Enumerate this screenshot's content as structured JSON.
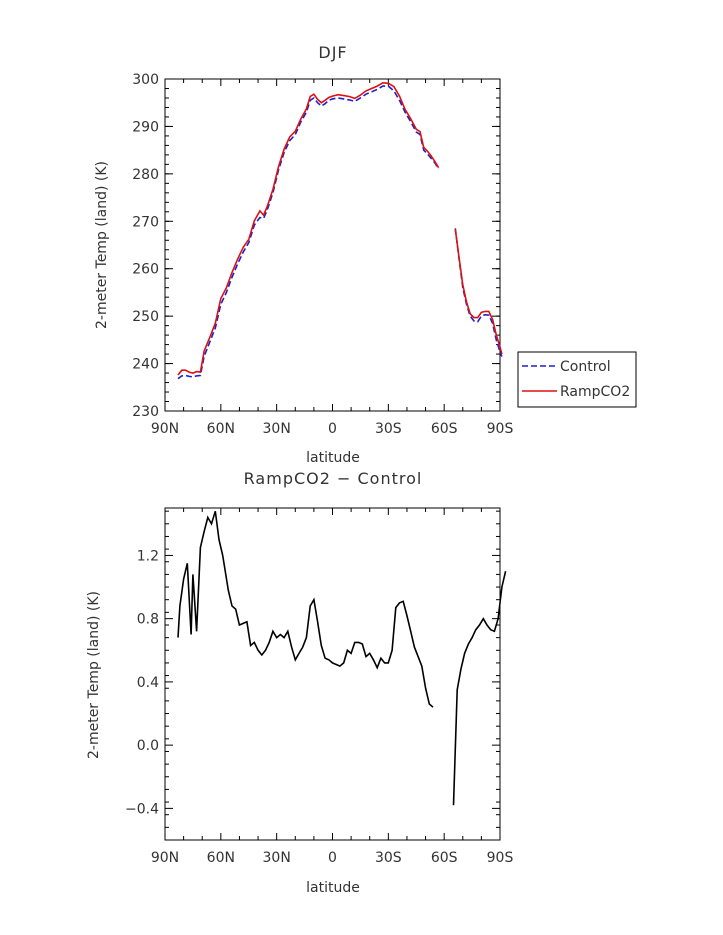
{
  "chart_data": [
    {
      "type": "line",
      "title": "DJF",
      "xlabel": "latitude",
      "ylabel": "2-meter Temp (land) (K)",
      "x_tick_labels": [
        "90N",
        "60N",
        "30N",
        "0",
        "30S",
        "60S",
        "90S"
      ],
      "x_tick_values": [
        90,
        60,
        30,
        0,
        -30,
        -60,
        -90
      ],
      "y_ticks": [
        230,
        240,
        250,
        260,
        270,
        280,
        290,
        300
      ],
      "xlim": [
        90,
        -90
      ],
      "ylim": [
        230,
        300
      ],
      "legend_position": "right",
      "series": [
        {
          "name": "Control",
          "color": "#1f1fcc",
          "style": "dashed",
          "segments": [
            [
              [
                83,
                236.8
              ],
              [
                81,
                237.4
              ],
              [
                79,
                237.5
              ],
              [
                77,
                237.3
              ],
              [
                75,
                237.2
              ],
              [
                73,
                237.4
              ],
              [
                71,
                237.5
              ],
              [
                69,
                241.5
              ],
              [
                66,
                244.5
              ],
              [
                63,
                247.5
              ],
              [
                60,
                252.5
              ],
              [
                57,
                255
              ],
              [
                54,
                258.2
              ],
              [
                51,
                261
              ],
              [
                48,
                263.5
              ],
              [
                45,
                265.5
              ],
              [
                42,
                269.2
              ],
              [
                39,
                270.8
              ],
              [
                37,
                270.6
              ],
              [
                35,
                272.5
              ],
              [
                32,
                276
              ],
              [
                29,
                280.8
              ],
              [
                26,
                284.5
              ],
              [
                23,
                287
              ],
              [
                20,
                288.3
              ],
              [
                17,
                291
              ],
              [
                14,
                293
              ],
              [
                12,
                295.5
              ],
              [
                10,
                296
              ],
              [
                8,
                295
              ],
              [
                6,
                294.3
              ],
              [
                4,
                294.8
              ],
              [
                2,
                295.5
              ],
              [
                0,
                295.8
              ],
              [
                -3,
                296
              ],
              [
                -6,
                295.8
              ],
              [
                -9,
                295.6
              ],
              [
                -12,
                295.3
              ],
              [
                -15,
                296
              ],
              [
                -18,
                296.8
              ],
              [
                -21,
                297.3
              ],
              [
                -24,
                297.8
              ],
              [
                -27,
                298.5
              ],
              [
                -30,
                298.5
              ],
              [
                -33,
                297.5
              ],
              [
                -36,
                295.5
              ],
              [
                -39,
                293
              ],
              [
                -42,
                291
              ],
              [
                -45,
                288.8
              ],
              [
                -47,
                288.3
              ],
              [
                -49,
                285
              ],
              [
                -51,
                284.2
              ],
              [
                -53,
                283.3
              ],
              [
                -55,
                282.3
              ],
              [
                -57,
                281
              ]
            ],
            [
              [
                -66,
                268.5
              ],
              [
                -68,
                262
              ],
              [
                -70,
                256
              ],
              [
                -72,
                252.5
              ],
              [
                -74,
                250
              ],
              [
                -76,
                249
              ],
              [
                -78,
                248.8
              ],
              [
                -80,
                250
              ],
              [
                -82,
                250.3
              ],
              [
                -84,
                250.2
              ],
              [
                -86,
                248.5
              ],
              [
                -88,
                245
              ],
              [
                -90,
                242.5
              ],
              [
                -91,
                241.5
              ]
            ]
          ]
        },
        {
          "name": "RampCO2",
          "color": "#dd1111",
          "style": "solid",
          "segments": [
            [
              [
                83,
                237.6
              ],
              [
                81,
                238.6
              ],
              [
                79,
                238.6
              ],
              [
                77,
                238.2
              ],
              [
                75,
                238
              ],
              [
                73,
                238.3
              ],
              [
                71,
                238.2
              ],
              [
                69,
                242.6
              ],
              [
                66,
                245.5
              ],
              [
                63,
                248.5
              ],
              [
                60,
                253.7
              ],
              [
                57,
                256
              ],
              [
                54,
                259.2
              ],
              [
                51,
                262
              ],
              [
                48,
                264.5
              ],
              [
                45,
                266.2
              ],
              [
                42,
                270.1
              ],
              [
                39,
                272.2
              ],
              [
                37,
                271.3
              ],
              [
                35,
                273.2
              ],
              [
                32,
                276.7
              ],
              [
                29,
                281.5
              ],
              [
                26,
                285.2
              ],
              [
                23,
                287.8
              ],
              [
                20,
                289
              ],
              [
                17,
                291.6
              ],
              [
                14,
                293.7
              ],
              [
                12,
                296.3
              ],
              [
                10,
                296.8
              ],
              [
                8,
                295.7
              ],
              [
                6,
                295
              ],
              [
                4,
                295.5
              ],
              [
                2,
                296.1
              ],
              [
                0,
                296.4
              ],
              [
                -3,
                296.7
              ],
              [
                -6,
                296.5
              ],
              [
                -9,
                296.3
              ],
              [
                -12,
                295.9
              ],
              [
                -15,
                296.6
              ],
              [
                -18,
                297.5
              ],
              [
                -21,
                298
              ],
              [
                -24,
                298.5
              ],
              [
                -27,
                299.2
              ],
              [
                -30,
                299.1
              ],
              [
                -33,
                298.4
              ],
              [
                -36,
                296.4
              ],
              [
                -39,
                293.6
              ],
              [
                -42,
                291.6
              ],
              [
                -45,
                289.4
              ],
              [
                -47,
                288.9
              ],
              [
                -49,
                285.6
              ],
              [
                -51,
                284.8
              ],
              [
                -53,
                283.8
              ],
              [
                -55,
                282.6
              ],
              [
                -57,
                281.3
              ]
            ],
            [
              [
                -66,
                268.3
              ],
              [
                -68,
                262.3
              ],
              [
                -70,
                256.6
              ],
              [
                -72,
                253
              ],
              [
                -74,
                250.5
              ],
              [
                -76,
                249.7
              ],
              [
                -78,
                249.7
              ],
              [
                -80,
                250.8
              ],
              [
                -82,
                251
              ],
              [
                -84,
                251
              ],
              [
                -86,
                249.3
              ],
              [
                -88,
                246
              ],
              [
                -90,
                243.5
              ],
              [
                -91,
                242
              ]
            ]
          ]
        }
      ]
    },
    {
      "type": "line",
      "title": "RampCO2 − Control",
      "xlabel": "latitude",
      "ylabel": "2-meter Temp (land) (K)",
      "x_tick_labels": [
        "90N",
        "60N",
        "30N",
        "0",
        "30S",
        "60S",
        "90S"
      ],
      "x_tick_values": [
        90,
        60,
        30,
        0,
        -30,
        -60,
        -90
      ],
      "y_ticks": [
        -0.4,
        0.0,
        0.4,
        0.8,
        1.2
      ],
      "y_tick_labels": [
        "−0.4",
        "0.0",
        "0.4",
        "0.8",
        "1.2"
      ],
      "xlim": [
        90,
        -90
      ],
      "ylim": [
        -0.6,
        1.5
      ],
      "series": [
        {
          "color": "#000000",
          "style": "solid",
          "segments": [
            [
              [
                83,
                0.68
              ],
              [
                82,
                0.88
              ],
              [
                80,
                1.05
              ],
              [
                78,
                1.15
              ],
              [
                76,
                0.7
              ],
              [
                75,
                1.08
              ],
              [
                73,
                0.72
              ],
              [
                71,
                1.25
              ],
              [
                69,
                1.35
              ],
              [
                67,
                1.44
              ],
              [
                65,
                1.4
              ],
              [
                63,
                1.48
              ],
              [
                61,
                1.3
              ],
              [
                59,
                1.2
              ],
              [
                56,
                0.98
              ],
              [
                54,
                0.88
              ],
              [
                52,
                0.86
              ],
              [
                50,
                0.76
              ],
              [
                48,
                0.77
              ],
              [
                46,
                0.78
              ],
              [
                44,
                0.63
              ],
              [
                42,
                0.65
              ],
              [
                40,
                0.6
              ],
              [
                38,
                0.57
              ],
              [
                36,
                0.6
              ],
              [
                34,
                0.65
              ],
              [
                32,
                0.72
              ],
              [
                30,
                0.68
              ],
              [
                28,
                0.7
              ],
              [
                26,
                0.68
              ],
              [
                24,
                0.72
              ],
              [
                22,
                0.62
              ],
              [
                20,
                0.54
              ],
              [
                18,
                0.58
              ],
              [
                16,
                0.62
              ],
              [
                14,
                0.68
              ],
              [
                12,
                0.88
              ],
              [
                10,
                0.92
              ],
              [
                8,
                0.78
              ],
              [
                6,
                0.63
              ],
              [
                4,
                0.55
              ],
              [
                2,
                0.54
              ],
              [
                0,
                0.52
              ],
              [
                -2,
                0.51
              ],
              [
                -4,
                0.5
              ],
              [
                -6,
                0.52
              ],
              [
                -8,
                0.6
              ],
              [
                -10,
                0.58
              ],
              [
                -12,
                0.65
              ],
              [
                -14,
                0.65
              ],
              [
                -16,
                0.64
              ],
              [
                -18,
                0.56
              ],
              [
                -20,
                0.58
              ],
              [
                -22,
                0.54
              ],
              [
                -24,
                0.49
              ],
              [
                -26,
                0.55
              ],
              [
                -28,
                0.52
              ],
              [
                -30,
                0.52
              ],
              [
                -32,
                0.6
              ],
              [
                -34,
                0.87
              ],
              [
                -36,
                0.9
              ],
              [
                -38,
                0.91
              ],
              [
                -40,
                0.82
              ],
              [
                -42,
                0.72
              ],
              [
                -44,
                0.62
              ],
              [
                -46,
                0.56
              ],
              [
                -48,
                0.5
              ],
              [
                -50,
                0.36
              ],
              [
                -52,
                0.26
              ],
              [
                -54,
                0.24
              ]
            ],
            [
              [
                -65,
                -0.38
              ],
              [
                -67,
                0.35
              ],
              [
                -69,
                0.48
              ],
              [
                -71,
                0.58
              ],
              [
                -73,
                0.64
              ],
              [
                -75,
                0.68
              ],
              [
                -77,
                0.73
              ],
              [
                -79,
                0.76
              ],
              [
                -81,
                0.8
              ],
              [
                -83,
                0.76
              ],
              [
                -85,
                0.73
              ],
              [
                -87,
                0.72
              ],
              [
                -89,
                0.8
              ],
              [
                -91,
                1.0
              ],
              [
                -93,
                1.1
              ]
            ]
          ]
        }
      ]
    }
  ]
}
